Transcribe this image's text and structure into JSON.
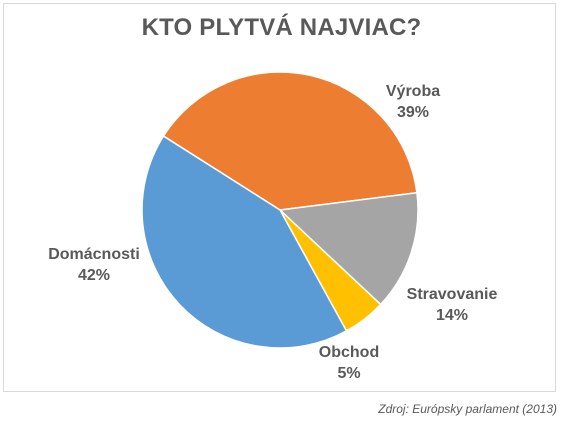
{
  "chart_data": {
    "type": "pie",
    "title": "KTO PLYTVÁ NAJVIAC?",
    "slices": [
      {
        "label": "Výroba",
        "value": 39,
        "value_label": "39%",
        "color": "#ED7D31"
      },
      {
        "label": "Stravovanie",
        "value": 14,
        "value_label": "14%",
        "color": "#A5A5A5"
      },
      {
        "label": "Obchod",
        "value": 5,
        "value_label": "5%",
        "color": "#FFC000"
      },
      {
        "label": "Domácnosti",
        "value": 42,
        "value_label": "42%",
        "color": "#5B9BD5"
      }
    ],
    "legend": "none",
    "data_labels": "outside"
  },
  "source": "Zdroj: Európsky parlament (2013)"
}
